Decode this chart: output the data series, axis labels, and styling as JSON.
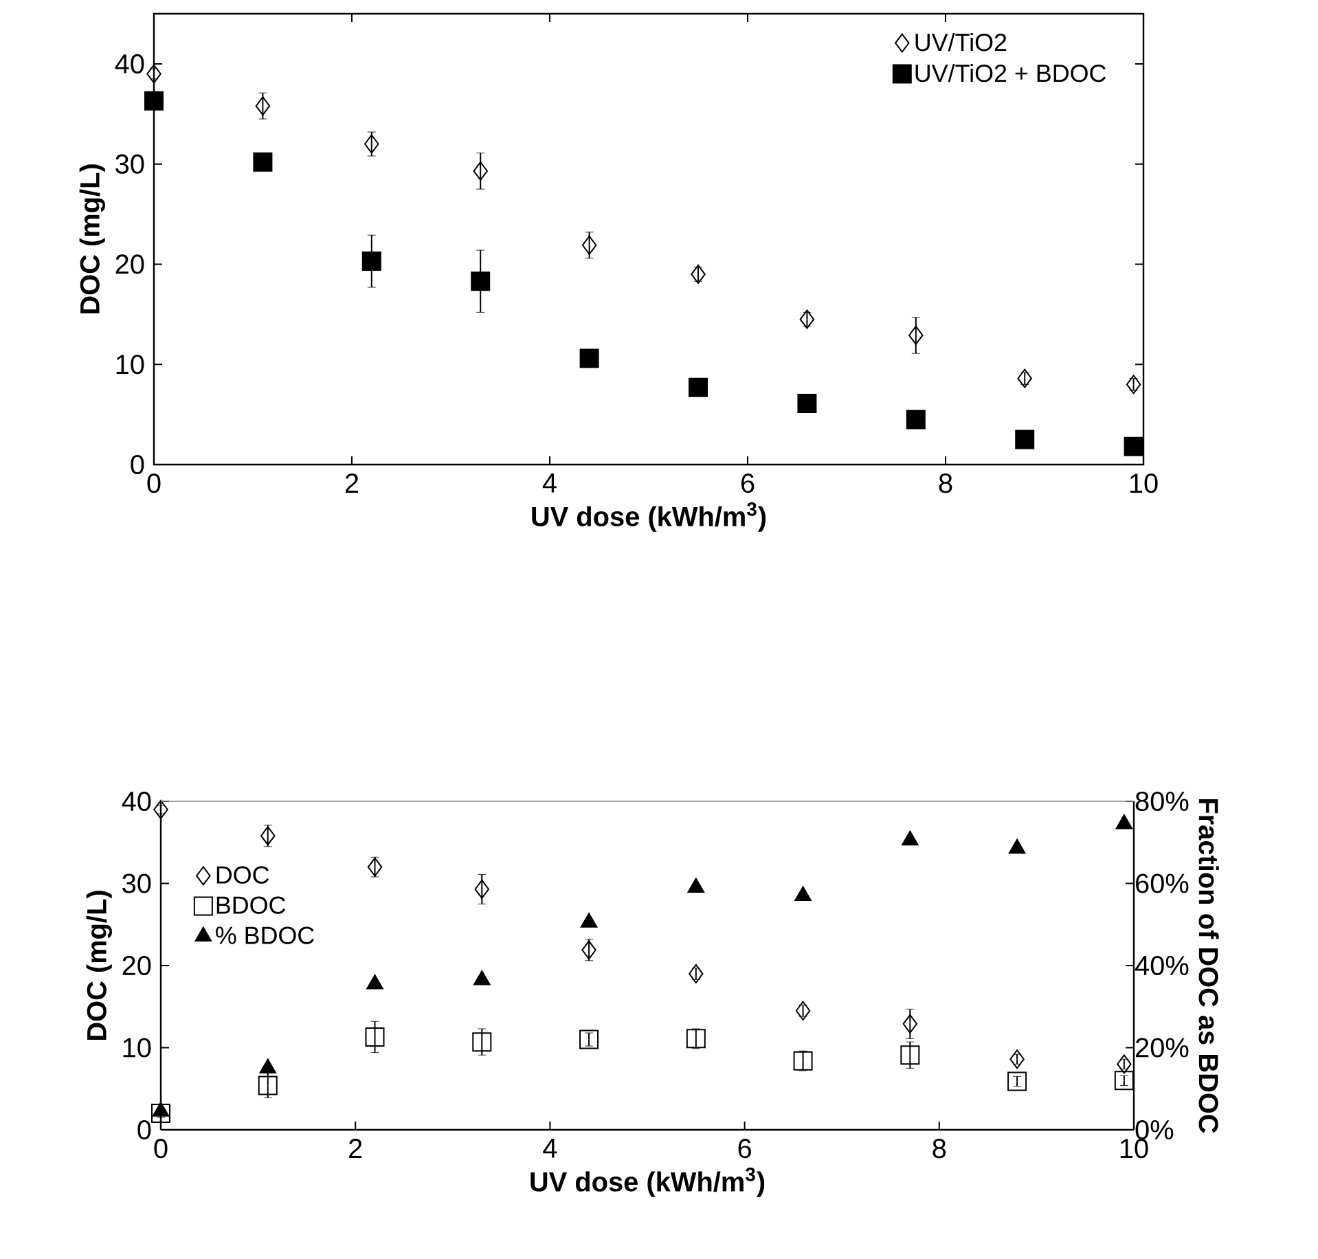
{
  "chart_data": [
    {
      "type": "scatter",
      "xlabel": "UV dose (kWh/m$^{3}$)",
      "ylabel": "DOC (mg/L)",
      "xlim": [
        0,
        10
      ],
      "ylim": [
        0,
        45
      ],
      "xticks": [
        0,
        2,
        4,
        6,
        8,
        10
      ],
      "yticks": [
        0,
        10,
        20,
        30,
        40
      ],
      "legend": "top right",
      "x": [
        0,
        1.1,
        2.2,
        3.3,
        4.4,
        5.5,
        6.6,
        7.7,
        8.8,
        9.9
      ],
      "series": [
        {
          "name": "UV/TiO2",
          "color": "#000000",
          "marker": "diamond",
          "values": [
            39,
            35.8,
            32,
            29.3,
            21.9,
            19,
            14.5,
            12.9,
            8.6,
            8
          ],
          "errors": [
            0.5,
            1.3,
            1.2,
            1.8,
            1.3,
            0.7,
            0.7,
            1.8,
            0.6,
            0.6
          ]
        },
        {
          "name": "UV/TiO2 + BDOC",
          "color": "#000000",
          "marker": "square",
          "values": [
            36.3,
            30.2,
            20.3,
            18.3,
            10.6,
            7.7,
            6.1,
            4.5,
            2.5,
            1.8
          ],
          "errors": [
            0.5,
            0.5,
            2.6,
            3.1,
            0.5,
            0.5,
            0.5,
            0.5,
            0.5,
            0.5
          ]
        }
      ]
    },
    {
      "type": "scatter",
      "xlabel": "UV dose (kWh/m$^{3}$)",
      "ylabel": "DOC (mg/L)",
      "y2label": "Fraction of DOC as BDOC",
      "xlim": [
        0,
        10
      ],
      "ylim": [
        0,
        40
      ],
      "y2lim": [
        0,
        80
      ],
      "xticks": [
        0,
        2,
        4,
        6,
        8,
        10
      ],
      "yticks": [
        0,
        10,
        20,
        30,
        40
      ],
      "y2ticks": [
        {
          "value": 0,
          "label": "0%"
        },
        {
          "value": 20,
          "label": "20%"
        },
        {
          "value": 40,
          "label": "40%"
        },
        {
          "value": 60,
          "label": "60%"
        },
        {
          "value": 80,
          "label": "80%"
        }
      ],
      "legend": "top left",
      "x": [
        0,
        1.1,
        2.2,
        3.3,
        4.4,
        5.5,
        6.6,
        7.7,
        8.8,
        9.9
      ],
      "series": [
        {
          "name": "DOC",
          "color": "#000000",
          "marker": "diamond",
          "values": [
            39,
            35.8,
            32,
            29.3,
            21.9,
            19,
            14.5,
            12.9,
            8.6,
            8
          ],
          "errors": [
            0.5,
            1.3,
            1.2,
            1.8,
            1.3,
            0.7,
            0.7,
            1.8,
            0.6,
            0.6
          ]
        },
        {
          "name": "BDOC",
          "color": "#000000",
          "marker": "square",
          "values": [
            2,
            5.4,
            11.3,
            10.7,
            11,
            11.1,
            8.4,
            9.1,
            5.9,
            6
          ],
          "errors": [
            0.5,
            1.5,
            1.9,
            1.6,
            0.8,
            1.2,
            1.2,
            1.6,
            0.6,
            0.6
          ]
        },
        {
          "name": "% BDOC",
          "color": "#000000",
          "marker": "triangle",
          "axis": "y2",
          "values": [
            4.5,
            15,
            35.5,
            36.5,
            50.5,
            59,
            57,
            70.5,
            68.5,
            74.5
          ]
        }
      ]
    }
  ]
}
